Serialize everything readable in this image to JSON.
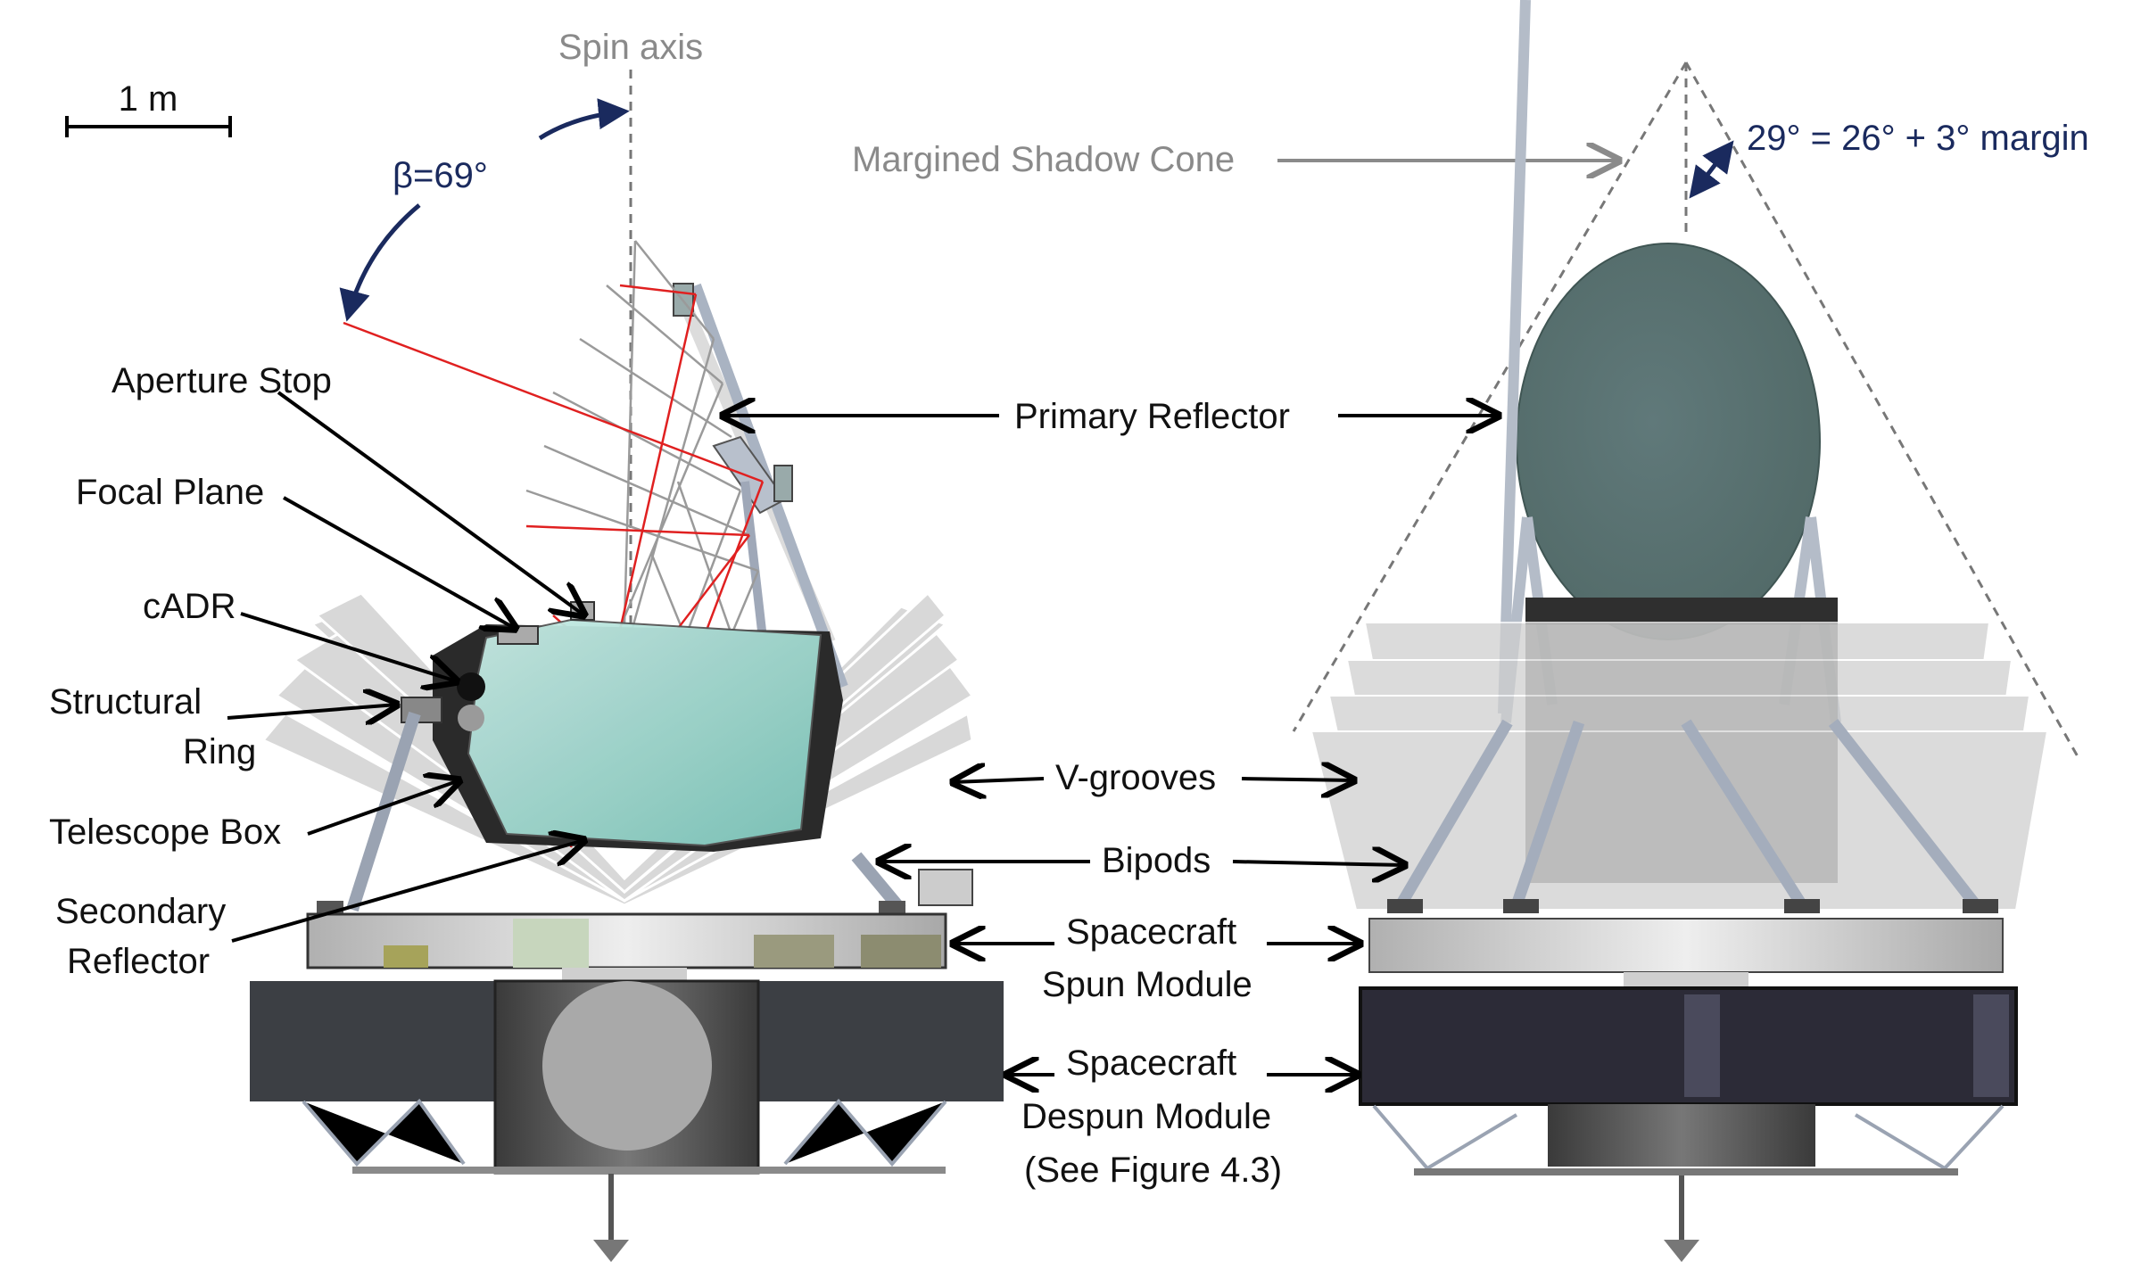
{
  "scale_bar": {
    "label": "1 m"
  },
  "spin_axis": {
    "label": "Spin axis"
  },
  "beta_angle": {
    "label": "β=69°"
  },
  "shadow_cone": {
    "label": "Margined Shadow Cone"
  },
  "cone_angle": {
    "label": "29° = 26° + 3° margin"
  },
  "labels": {
    "aperture_stop": "Aperture Stop",
    "focal_plane": "Focal Plane",
    "cadr": "cADR",
    "structural_ring_line1": "Structural",
    "structural_ring_line2": "Ring",
    "telescope_box": "Telescope Box",
    "secondary_reflector_line1": "Secondary",
    "secondary_reflector_line2": "Reflector",
    "primary_reflector": "Primary Reflector",
    "v_grooves": "V-grooves",
    "bipods": "Bipods",
    "spun_module_line1": "Spacecraft",
    "spun_module_line2": "Spun Module",
    "despun_module_line1": "Spacecraft",
    "despun_module_line2": "Despun Module",
    "despun_module_line3": "(See Figure 4.3)"
  },
  "colors": {
    "primary_reflector": "#5a7370",
    "telescope_box_glass": "#a8ddd6",
    "despun_dark": "#3c3f44",
    "right_despun": "#2c2b37",
    "vgroove": "#cfcfcf",
    "ray_red": "#e02020",
    "ray_grey": "#9a9a9a",
    "annotation_blue": "#1a2a5e",
    "annotation_grey": "#8a8a8a"
  }
}
